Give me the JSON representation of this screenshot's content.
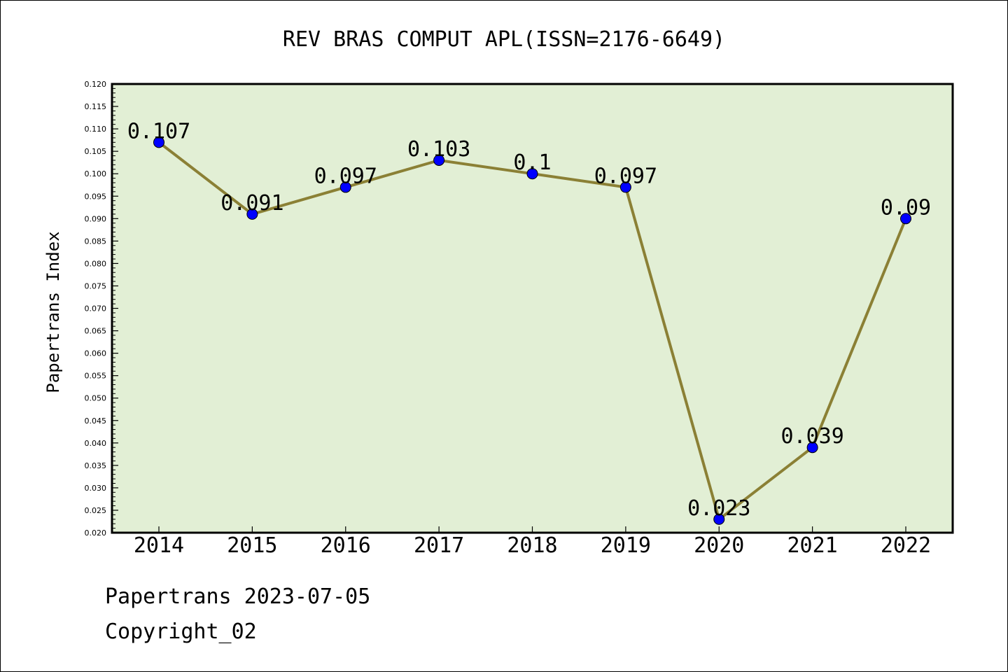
{
  "chart_data": {
    "type": "line",
    "title": "REV BRAS COMPUT APL(ISSN=2176-6649)",
    "xlabel": "",
    "ylabel": "Papertrans Index",
    "categories": [
      "2014",
      "2015",
      "2016",
      "2017",
      "2018",
      "2019",
      "2020",
      "2021",
      "2022"
    ],
    "values": [
      0.107,
      0.091,
      0.097,
      0.103,
      0.1,
      0.097,
      0.023,
      0.039,
      0.09
    ],
    "data_labels": [
      "0.107",
      "0.091",
      "0.097",
      "0.103",
      "0.1",
      "0.097",
      "0.023",
      "0.039",
      "0.09"
    ],
    "ylim": [
      0.02,
      0.12
    ],
    "yticks": [
      "0.020",
      "0.025",
      "0.030",
      "0.035",
      "0.040",
      "0.045",
      "0.050",
      "0.055",
      "0.060",
      "0.065",
      "0.070",
      "0.075",
      "0.080",
      "0.085",
      "0.090",
      "0.095",
      "0.100",
      "0.105",
      "0.110",
      "0.115",
      "0.120"
    ],
    "grid": false,
    "colors": {
      "plot_background": "#e2efd5",
      "line": "#8b8035",
      "marker": "#0000ff"
    }
  },
  "footer": {
    "line1": "Papertrans 2023-07-05",
    "line2": "Copyright_02"
  }
}
